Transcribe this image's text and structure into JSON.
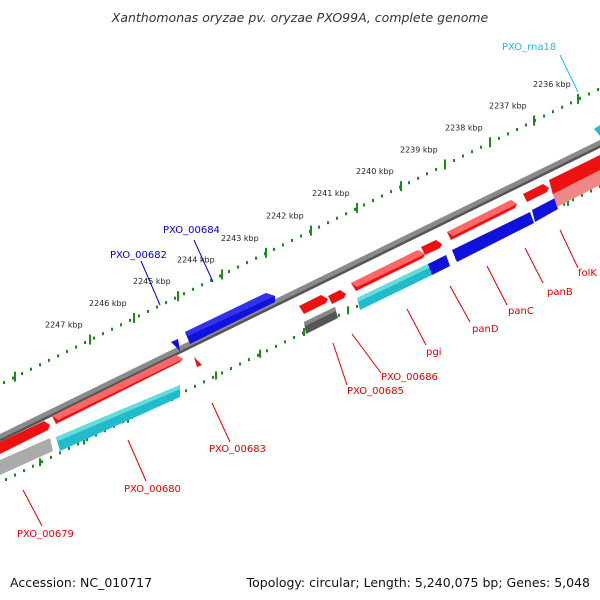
{
  "title": "Xanthomonas oryzae pv. oryzae PXO99A, complete genome",
  "footer": {
    "accession": "Accession: NC_010717",
    "topology": "Topology: circular; Length: 5,240,075 bp; Genes: 5,048"
  },
  "ruler": {
    "color": "#1a8a1a",
    "labels": [
      "2236 kbp",
      "2237 kbp",
      "2238 kbp",
      "2239 kbp",
      "2240 kbp",
      "2241 kbp",
      "2242 kbp",
      "2243 kbp",
      "2244 kbp",
      "2245 kbp",
      "2246 kbp",
      "2247 kbp"
    ]
  },
  "colors": {
    "forward_cds": "#ee1111",
    "reverse_cds": "#1111dd",
    "rrna": "#22bbcc",
    "gene_light": "#aaaaaa",
    "gene_dark": "#555555",
    "backbone": "#8a8a8a",
    "label_red": "#dd0000",
    "label_blue": "#0000cc",
    "label_cyan": "#22bbdd"
  },
  "features": {
    "pxo_rna18": "PXO_rna18",
    "folk": "folK",
    "panb": "panB",
    "panc": "panC",
    "pand": "panD",
    "pgi": "pgi",
    "pxo_00686": "PXO_00686",
    "pxo_00685": "PXO_00685",
    "pxo_00684": "PXO_00684",
    "pxo_00683": "PXO_00683",
    "pxo_00682": "PXO_00682",
    "pxo_00680": "PXO_00680",
    "pxo_00679": "PXO_00679"
  }
}
